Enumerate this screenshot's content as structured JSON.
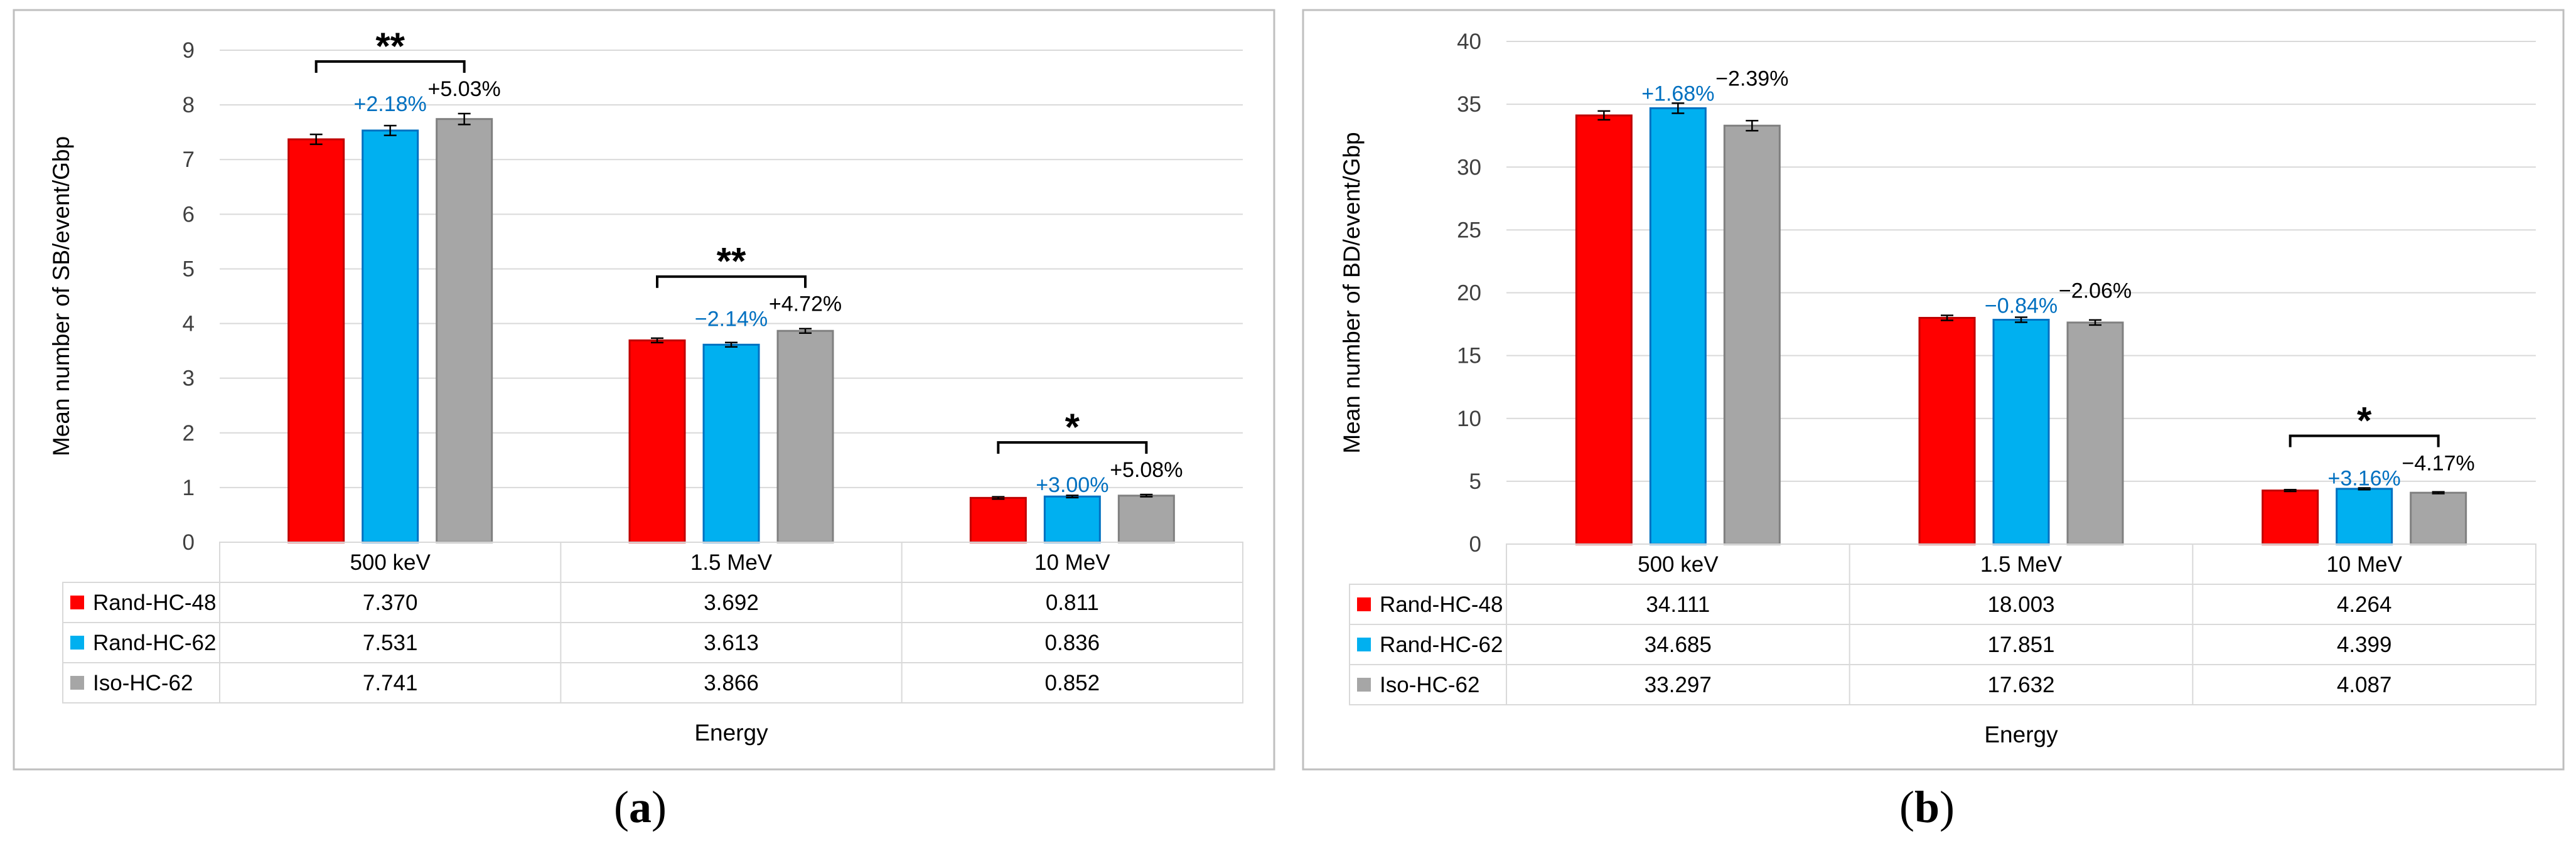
{
  "colors": {
    "series": [
      "#ff0000",
      "#00b0f0",
      "#a6a6a6"
    ],
    "series_border": [
      "#c00000",
      "#0070c0",
      "#808080"
    ],
    "pct_blue": "#0070c0",
    "pct_black": "#000000",
    "grid": "#d9d9d9",
    "frame": "#bfbfbf"
  },
  "panels": [
    {
      "open": "(",
      "letter": "a",
      "close": ")"
    },
    {
      "open": "(",
      "letter": "b",
      "close": ")"
    }
  ],
  "chart_data": [
    {
      "type": "bar",
      "ylabel": "Mean number of SB/event/Gbp",
      "xlabel": "Energy",
      "ylim": [
        0,
        9
      ],
      "yticks": [
        0,
        1,
        2,
        3,
        4,
        5,
        6,
        7,
        8,
        9
      ],
      "grid": true,
      "categories": [
        "500 keV",
        "1.5 MeV",
        "10 MeV"
      ],
      "series": [
        {
          "name": "Rand-HC-48",
          "values": [
            7.37,
            3.692,
            0.811
          ],
          "labels": [
            "7.370",
            "3.692",
            "0.811"
          ],
          "errors": [
            0.09,
            0.04,
            0.02
          ]
        },
        {
          "name": "Rand-HC-62",
          "values": [
            7.531,
            3.613,
            0.836
          ],
          "labels": [
            "7.531",
            "3.613",
            "0.836"
          ],
          "errors": [
            0.09,
            0.04,
            0.02
          ]
        },
        {
          "name": "Iso-HC-62",
          "values": [
            7.741,
            3.866,
            0.852
          ],
          "labels": [
            "7.741",
            "3.866",
            "0.852"
          ],
          "errors": [
            0.1,
            0.04,
            0.02
          ]
        }
      ],
      "annotations": [
        {
          "category": 0,
          "blue": "+2.18%",
          "black": "+5.03%",
          "sig": "**"
        },
        {
          "category": 1,
          "blue": "−2.14%",
          "black": "+4.72%",
          "sig": "**"
        },
        {
          "category": 2,
          "blue": "+3.00%",
          "black": "+5.08%",
          "sig": "*"
        }
      ]
    },
    {
      "type": "bar",
      "ylabel": "Mean number of BD/event/Gbp",
      "xlabel": "Energy",
      "ylim": [
        0,
        40
      ],
      "yticks": [
        0,
        5,
        10,
        15,
        20,
        25,
        30,
        35,
        40
      ],
      "grid": true,
      "categories": [
        "500 keV",
        "1.5 MeV",
        "10 MeV"
      ],
      "series": [
        {
          "name": "Rand-HC-48",
          "values": [
            34.111,
            18.003,
            4.264
          ],
          "labels": [
            "34.111",
            "18.003",
            "4.264"
          ],
          "errors": [
            0.35,
            0.2,
            0.07
          ]
        },
        {
          "name": "Rand-HC-62",
          "values": [
            34.685,
            17.851,
            4.399
          ],
          "labels": [
            "34.685",
            "17.851",
            "4.399"
          ],
          "errors": [
            0.4,
            0.2,
            0.07
          ]
        },
        {
          "name": "Iso-HC-62",
          "values": [
            33.297,
            17.632,
            4.087
          ],
          "labels": [
            "33.297",
            "17.632",
            "4.087"
          ],
          "errors": [
            0.4,
            0.2,
            0.07
          ]
        }
      ],
      "annotations": [
        {
          "category": 0,
          "blue": "+1.68%",
          "black": "−2.39%",
          "sig": ""
        },
        {
          "category": 1,
          "blue": "−0.84%",
          "black": "−2.06%",
          "sig": ""
        },
        {
          "category": 2,
          "blue": "+3.16%",
          "black": "−4.17%",
          "sig": "*"
        }
      ]
    }
  ]
}
